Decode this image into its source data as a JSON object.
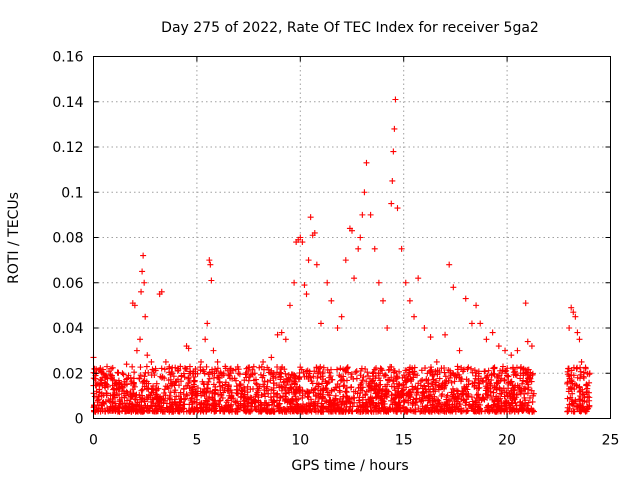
{
  "chart_data": {
    "type": "scatter",
    "title": "Day 275 of 2022, Rate Of TEC Index for receiver 5ga2",
    "xlabel": "GPS time / hours",
    "ylabel": "ROTI / TECUs",
    "xlim": [
      0,
      25
    ],
    "ylim": [
      0,
      0.16
    ],
    "x_ticks": [
      0,
      5,
      10,
      15,
      20,
      25
    ],
    "x_tick_labels": [
      "0",
      "5",
      "10",
      "15",
      "20",
      "25"
    ],
    "y_ticks": [
      0,
      0.02,
      0.04,
      0.06,
      0.08,
      0.1,
      0.12,
      0.14,
      0.16
    ],
    "y_tick_labels": [
      "0",
      "0.02",
      "0.04",
      "0.06",
      "0.08",
      "0.1",
      "0.12",
      "0.14",
      "0.16"
    ],
    "grid": true,
    "marker": "plus",
    "color": "#ff0000",
    "series": [
      {
        "x": [
          0.0,
          0.05,
          0.1,
          0.15,
          0.2,
          0.3,
          0.4,
          0.55,
          0.7,
          0.85,
          1.0,
          1.2,
          1.4,
          1.6,
          1.8,
          1.9,
          2.0,
          2.1,
          2.25,
          2.3,
          2.35,
          2.4,
          2.45,
          2.5,
          2.6,
          2.8,
          3.0,
          3.2,
          3.3,
          3.5,
          3.8,
          4.2,
          4.5,
          4.6,
          4.8,
          5.2,
          5.4,
          5.5,
          5.6,
          5.65,
          5.7,
          5.8,
          6.0,
          6.3,
          6.6,
          7.0,
          7.4,
          7.8,
          8.2,
          8.6,
          8.9,
          9.1,
          9.3,
          9.5,
          9.7,
          9.8,
          9.9,
          10.0,
          10.1,
          10.2,
          10.3,
          10.4,
          10.5,
          10.6,
          10.7,
          10.8,
          11.0,
          11.3,
          11.5,
          11.8,
          12.0,
          12.2,
          12.4,
          12.5,
          12.6,
          12.8,
          12.9,
          13.0,
          13.1,
          13.2,
          13.4,
          13.6,
          13.8,
          14.0,
          14.2,
          14.4,
          14.45,
          14.5,
          14.55,
          14.6,
          14.7,
          14.9,
          15.1,
          15.3,
          15.5,
          15.7,
          16.0,
          16.3,
          16.6,
          17.0,
          17.2,
          17.4,
          17.7,
          18.0,
          18.3,
          18.5,
          18.7,
          19.0,
          19.3,
          19.6,
          19.9,
          20.2,
          20.5,
          20.8,
          20.9,
          21.0,
          21.2,
          23.0,
          23.1,
          23.2,
          23.3,
          23.4,
          23.5,
          23.6,
          23.8,
          24.0
        ],
        "y": [
          0.027,
          0.022,
          0.019,
          0.012,
          0.008,
          0.015,
          0.011,
          0.018,
          0.014,
          0.022,
          0.017,
          0.013,
          0.02,
          0.024,
          0.018,
          0.051,
          0.05,
          0.03,
          0.035,
          0.056,
          0.065,
          0.072,
          0.06,
          0.045,
          0.028,
          0.025,
          0.022,
          0.055,
          0.056,
          0.025,
          0.02,
          0.023,
          0.032,
          0.031,
          0.02,
          0.025,
          0.035,
          0.042,
          0.07,
          0.068,
          0.061,
          0.03,
          0.025,
          0.02,
          0.021,
          0.02,
          0.022,
          0.02,
          0.025,
          0.027,
          0.037,
          0.038,
          0.035,
          0.05,
          0.06,
          0.078,
          0.079,
          0.08,
          0.078,
          0.059,
          0.055,
          0.07,
          0.089,
          0.081,
          0.082,
          0.068,
          0.042,
          0.06,
          0.052,
          0.04,
          0.045,
          0.07,
          0.084,
          0.083,
          0.062,
          0.075,
          0.08,
          0.09,
          0.1,
          0.113,
          0.09,
          0.075,
          0.06,
          0.052,
          0.04,
          0.095,
          0.105,
          0.118,
          0.128,
          0.141,
          0.093,
          0.075,
          0.06,
          0.052,
          0.045,
          0.062,
          0.04,
          0.036,
          0.025,
          0.037,
          0.068,
          0.058,
          0.03,
          0.053,
          0.042,
          0.05,
          0.042,
          0.035,
          0.038,
          0.032,
          0.03,
          0.028,
          0.03,
          0.022,
          0.051,
          0.034,
          0.032,
          0.04,
          0.049,
          0.047,
          0.045,
          0.038,
          0.035,
          0.025,
          0.022,
          0.02
        ]
      }
    ]
  }
}
